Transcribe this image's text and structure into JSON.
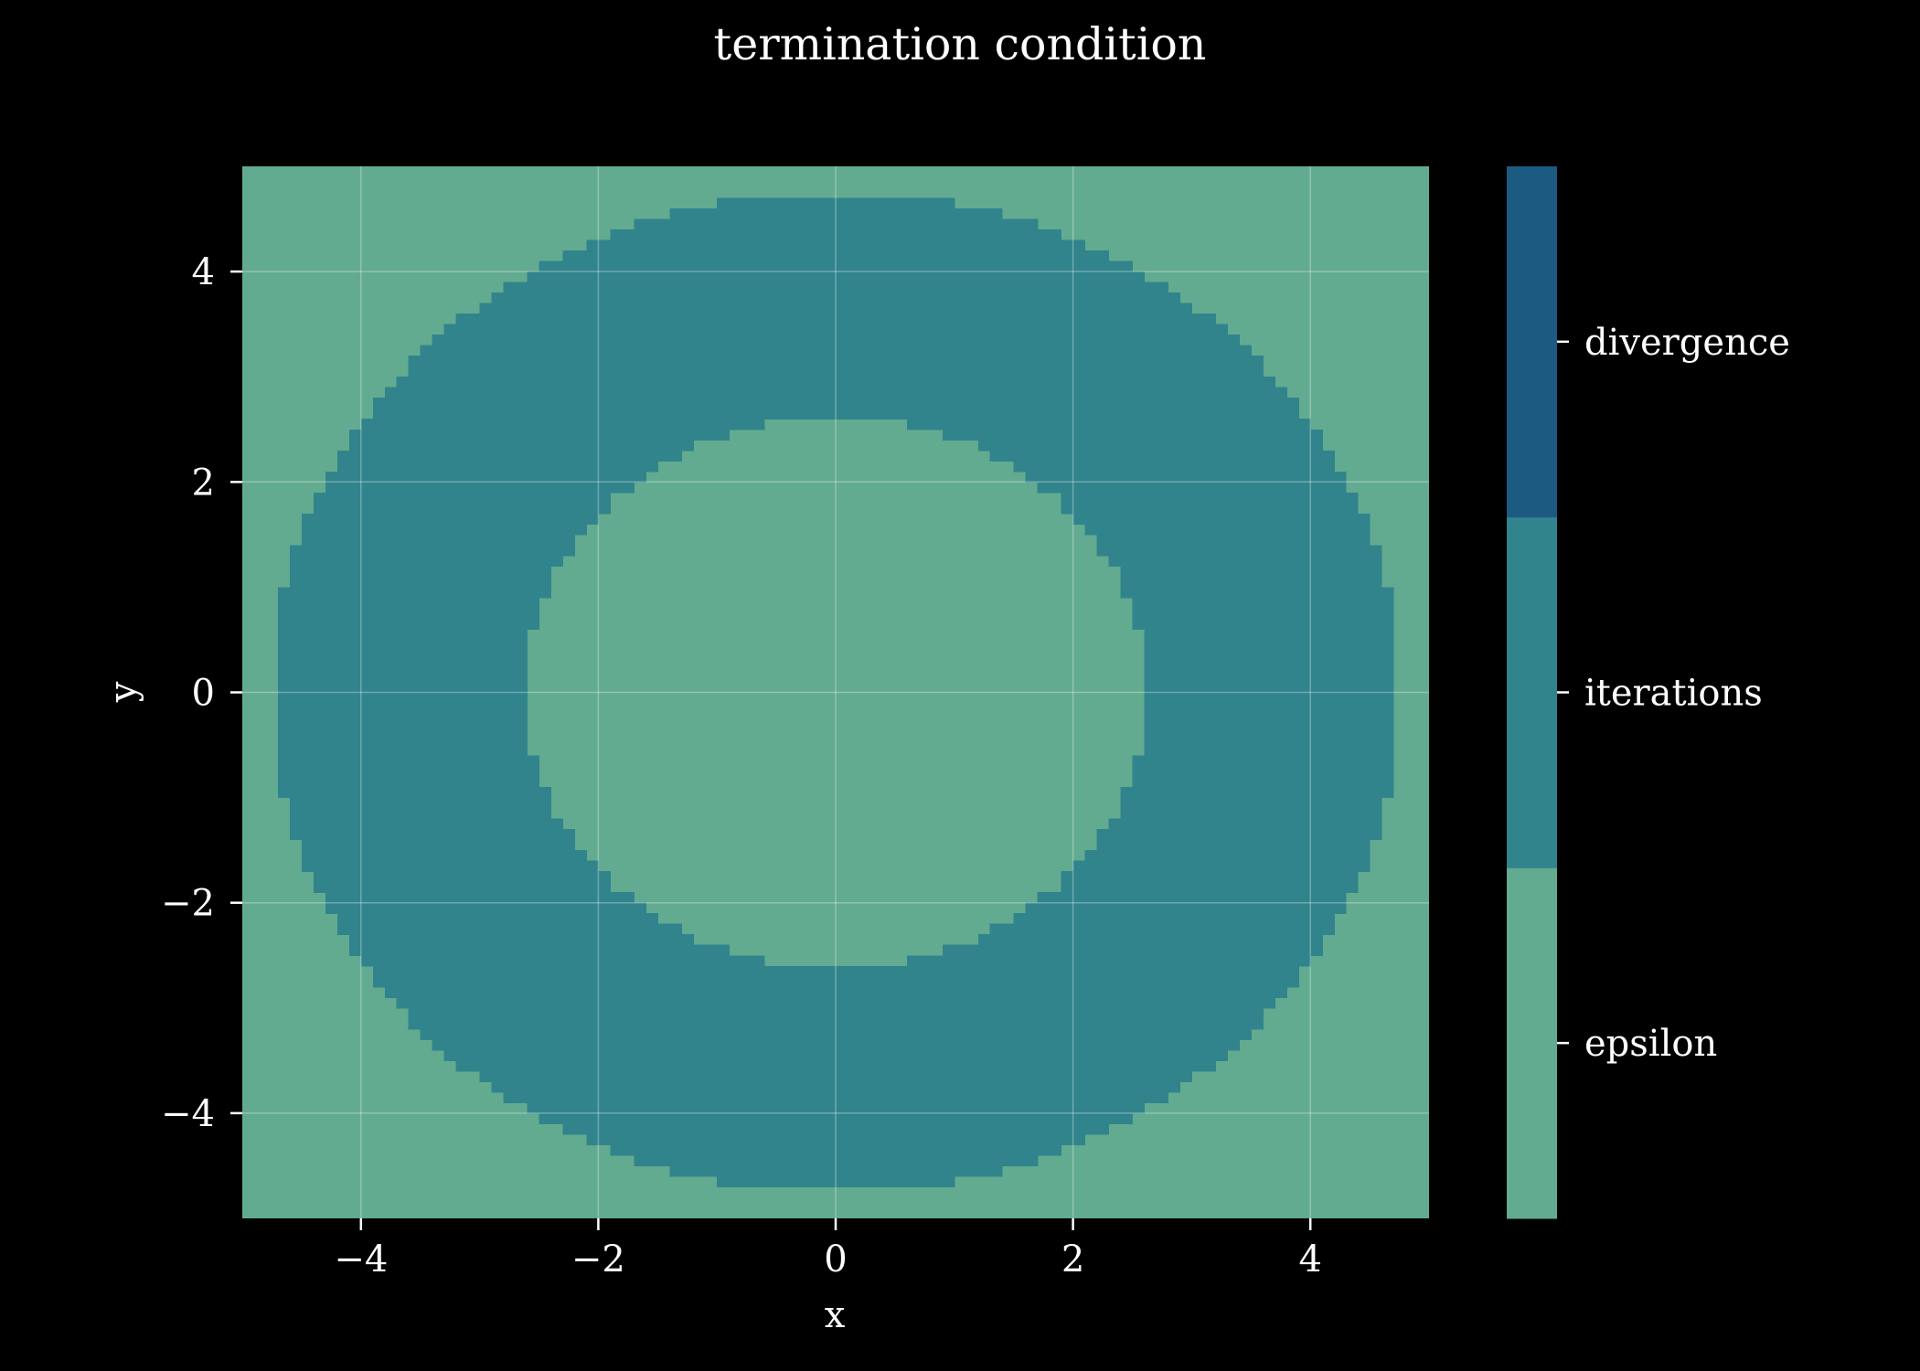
{
  "chart_data": {
    "type": "heatmap",
    "title": "termination condition",
    "xlabel": "x",
    "ylabel": "y",
    "xlim": [
      -5,
      5
    ],
    "ylim": [
      -5,
      5
    ],
    "xticks": [
      -4,
      -2,
      0,
      2,
      4
    ],
    "xtick_labels": [
      "−4",
      "−2",
      "0",
      "2",
      "4"
    ],
    "yticks": [
      -4,
      -2,
      0,
      2,
      4
    ],
    "ytick_labels": [
      "−4",
      "−2",
      "0",
      "2",
      "4"
    ],
    "grid": true,
    "grid_resolution": 100,
    "categories": [
      "epsilon",
      "iterations",
      "divergence"
    ],
    "category_colors": [
      "#62ab90",
      "#31848b",
      "#1d5a82"
    ],
    "regions": [
      {
        "category": "epsilon",
        "r_min": 0,
        "r_max": 2.62
      },
      {
        "category": "iterations",
        "r_min": 2.62,
        "r_max": 4.75
      },
      {
        "category": "epsilon",
        "r_min": 4.75,
        "r_max": null
      }
    ],
    "colorbar": {
      "ticks": [
        "epsilon",
        "iterations",
        "divergence"
      ],
      "placement": "right"
    }
  }
}
